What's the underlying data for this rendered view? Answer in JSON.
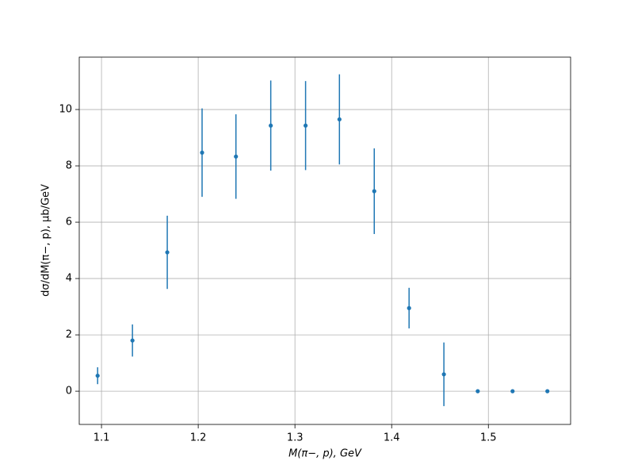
{
  "chart_data": {
    "type": "scatter",
    "xlabel": "M(π−, p), GeV",
    "ylabel": "dσ/dM(π−, p), μb/GeV",
    "series": [
      {
        "color": "#1f77b4",
        "x": [
          1.096,
          1.132,
          1.168,
          1.204,
          1.239,
          1.275,
          1.311,
          1.346,
          1.382,
          1.418,
          1.454,
          1.489,
          1.525,
          1.561
        ],
        "values": [
          0.55,
          1.8,
          4.93,
          8.47,
          8.33,
          9.43,
          9.43,
          9.65,
          7.1,
          2.95,
          0.6,
          0,
          0,
          0
        ],
        "errors": [
          0.3,
          0.57,
          1.3,
          1.57,
          1.5,
          1.6,
          1.58,
          1.6,
          1.52,
          0.72,
          1.13,
          0,
          0,
          0
        ]
      }
    ],
    "xlim": [
      1.077,
      1.585
    ],
    "xticks": [
      1.1,
      1.2,
      1.3,
      1.4,
      1.5
    ],
    "ylim": [
      -1.18,
      11.86
    ],
    "yticks": [
      0,
      2,
      4,
      6,
      8,
      10
    ],
    "grid": true
  }
}
